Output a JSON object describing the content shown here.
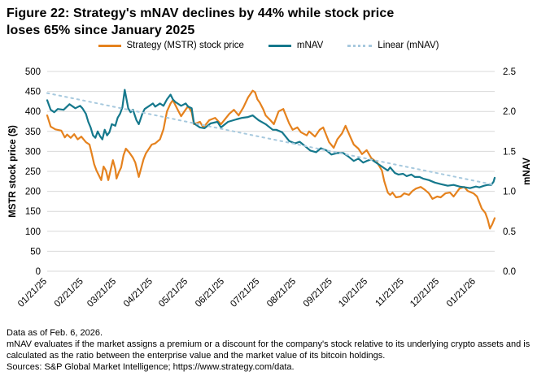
{
  "title": {
    "line1": "Figure 22: Strategy's mNAV declines by 44% while stock price",
    "line2": "loses 65% since January 2025"
  },
  "legend": [
    {
      "label": "Strategy (MSTR) stock price",
      "color": "#E5821E",
      "style": "solid"
    },
    {
      "label": "mNAV",
      "color": "#15788C",
      "style": "solid"
    },
    {
      "label": "Linear (mNAV)",
      "color": "#A7C9DE",
      "style": "dotted"
    }
  ],
  "colors": {
    "mstr_orange": "#E5821E",
    "mnav_teal": "#15788C",
    "trend_lightblue": "#A7C9DE",
    "gridline": "#D9D9D9",
    "text": "#000000"
  },
  "axes": {
    "left_title": "MSTR stock price ($)",
    "right_title": "mNAV",
    "left_ticks": [
      500,
      450,
      400,
      350,
      300,
      250,
      200,
      150,
      100,
      50,
      0
    ],
    "right_ticks": [
      "2.5",
      "2.0",
      "1.5",
      "1.0",
      "0.5",
      "0.0"
    ],
    "x_tick_labels": [
      "01/21/25",
      "02/21/25",
      "03/21/25",
      "04/21/25",
      "05/21/25",
      "06/21/25",
      "07/21/25",
      "08/21/25",
      "09/21/25",
      "10/21/25",
      "11/21/25",
      "12/21/25",
      "01/21/26"
    ]
  },
  "footnotes": [
    "Data as of Feb. 6, 2026.",
    "mNAV evaluates if the market assigns a premium or a discount for the company's stock relative to its underlying crypto assets and is calculated as the ratio between the enterprise value and the market value of its bitcoin holdings.",
    "Sources: S&P Global Market Intelligence; https://www.strategy.com/data."
  ],
  "chart_data": {
    "type": "line",
    "title": "Figure 22: Strategy's mNAV declines by 44% while stock price loses 65% since January 2025",
    "x_unit": "days since 01/21/2025",
    "x_range": [
      0,
      381
    ],
    "grid": true,
    "legend_position": "top-center",
    "left_axis": {
      "label": "MSTR stock price ($)",
      "ylim": [
        0,
        500
      ],
      "tick_step": 50
    },
    "right_axis": {
      "label": "mNAV",
      "ylim": [
        0,
        2.5
      ],
      "tick_step": 0.5
    },
    "x_ticks": [
      {
        "day": 0,
        "label": "01/21/25"
      },
      {
        "day": 31,
        "label": "02/21/25"
      },
      {
        "day": 59,
        "label": "03/21/25"
      },
      {
        "day": 90,
        "label": "04/21/25"
      },
      {
        "day": 120,
        "label": "05/21/25"
      },
      {
        "day": 151,
        "label": "06/21/25"
      },
      {
        "day": 181,
        "label": "07/21/25"
      },
      {
        "day": 212,
        "label": "08/21/25"
      },
      {
        "day": 243,
        "label": "09/21/25"
      },
      {
        "day": 273,
        "label": "10/21/25"
      },
      {
        "day": 304,
        "label": "11/21/25"
      },
      {
        "day": 334,
        "label": "12/21/25"
      },
      {
        "day": 365,
        "label": "01/21/26"
      }
    ],
    "series": [
      {
        "name": "Strategy (MSTR) stock price",
        "axis": "left",
        "color": "#E5821E",
        "dash": false,
        "points": [
          [
            0,
            390
          ],
          [
            3,
            362
          ],
          [
            7,
            355
          ],
          [
            12,
            352
          ],
          [
            15,
            335
          ],
          [
            17,
            342
          ],
          [
            20,
            334
          ],
          [
            23,
            343
          ],
          [
            26,
            330
          ],
          [
            29,
            337
          ],
          [
            33,
            323
          ],
          [
            36,
            317
          ],
          [
            38,
            293
          ],
          [
            40,
            268
          ],
          [
            42,
            252
          ],
          [
            44,
            240
          ],
          [
            46,
            228
          ],
          [
            48,
            262
          ],
          [
            50,
            252
          ],
          [
            52,
            228
          ],
          [
            55,
            266
          ],
          [
            56,
            278
          ],
          [
            58,
            256
          ],
          [
            59,
            232
          ],
          [
            61,
            248
          ],
          [
            63,
            260
          ],
          [
            65,
            290
          ],
          [
            67,
            307
          ],
          [
            70,
            297
          ],
          [
            73,
            284
          ],
          [
            75,
            272
          ],
          [
            78,
            236
          ],
          [
            82,
            280
          ],
          [
            84,
            295
          ],
          [
            89,
            317
          ],
          [
            92,
            320
          ],
          [
            96,
            330
          ],
          [
            99,
            355
          ],
          [
            102,
            400
          ],
          [
            105,
            420
          ],
          [
            107,
            428
          ],
          [
            111,
            405
          ],
          [
            114,
            388
          ],
          [
            118,
            405
          ],
          [
            120,
            413
          ],
          [
            123,
            398
          ],
          [
            125,
            368
          ],
          [
            130,
            374
          ],
          [
            133,
            360
          ],
          [
            138,
            378
          ],
          [
            143,
            384
          ],
          [
            148,
            368
          ],
          [
            155,
            394
          ],
          [
            159,
            404
          ],
          [
            163,
            390
          ],
          [
            167,
            410
          ],
          [
            171,
            435
          ],
          [
            175,
            452
          ],
          [
            177,
            448
          ],
          [
            179,
            430
          ],
          [
            181,
            422
          ],
          [
            184,
            405
          ],
          [
            186,
            390
          ],
          [
            190,
            378
          ],
          [
            193,
            368
          ],
          [
            197,
            400
          ],
          [
            201,
            406
          ],
          [
            206,
            370
          ],
          [
            209,
            354
          ],
          [
            213,
            360
          ],
          [
            216,
            348
          ],
          [
            221,
            340
          ],
          [
            223,
            350
          ],
          [
            228,
            337
          ],
          [
            232,
            354
          ],
          [
            235,
            360
          ],
          [
            240,
            323
          ],
          [
            244,
            309
          ],
          [
            247,
            330
          ],
          [
            251,
            345
          ],
          [
            254,
            364
          ],
          [
            258,
            337
          ],
          [
            261,
            317
          ],
          [
            265,
            307
          ],
          [
            268,
            293
          ],
          [
            272,
            303
          ],
          [
            276,
            283
          ],
          [
            281,
            272
          ],
          [
            283,
            262
          ],
          [
            285,
            252
          ],
          [
            287,
            225
          ],
          [
            290,
            197
          ],
          [
            292,
            191
          ],
          [
            294,
            197
          ],
          [
            297,
            185
          ],
          [
            301,
            187
          ],
          [
            304,
            195
          ],
          [
            308,
            191
          ],
          [
            311,
            201
          ],
          [
            314,
            207
          ],
          [
            318,
            211
          ],
          [
            321,
            205
          ],
          [
            325,
            195
          ],
          [
            328,
            181
          ],
          [
            332,
            187
          ],
          [
            335,
            185
          ],
          [
            339,
            195
          ],
          [
            343,
            197
          ],
          [
            346,
            187
          ],
          [
            351,
            207
          ],
          [
            355,
            211
          ],
          [
            358,
            201
          ],
          [
            363,
            195
          ],
          [
            366,
            187
          ],
          [
            370,
            157
          ],
          [
            373,
            146
          ],
          [
            375,
            130
          ],
          [
            377,
            107
          ],
          [
            379,
            118
          ],
          [
            381,
            133
          ]
        ]
      },
      {
        "name": "mNAV",
        "axis": "right",
        "color": "#15788C",
        "dash": false,
        "points": [
          [
            0,
            2.14
          ],
          [
            3,
            2.02
          ],
          [
            6,
            1.99
          ],
          [
            9,
            2.03
          ],
          [
            14,
            2.02
          ],
          [
            19,
            2.09
          ],
          [
            24,
            2.04
          ],
          [
            28,
            2.07
          ],
          [
            30,
            2.04
          ],
          [
            33,
            1.97
          ],
          [
            35,
            1.87
          ],
          [
            37,
            1.8
          ],
          [
            39,
            1.7
          ],
          [
            41,
            1.67
          ],
          [
            43,
            1.75
          ],
          [
            45,
            1.69
          ],
          [
            47,
            1.65
          ],
          [
            49,
            1.77
          ],
          [
            51,
            1.7
          ],
          [
            53,
            1.74
          ],
          [
            55,
            1.84
          ],
          [
            58,
            1.82
          ],
          [
            60,
            1.92
          ],
          [
            62,
            1.97
          ],
          [
            64,
            2.05
          ],
          [
            66,
            2.27
          ],
          [
            69,
            2.04
          ],
          [
            71,
            1.99
          ],
          [
            73,
            2.02
          ],
          [
            76,
            1.89
          ],
          [
            78,
            1.84
          ],
          [
            81,
            1.97
          ],
          [
            83,
            2.03
          ],
          [
            87,
            2.07
          ],
          [
            90,
            2.1
          ],
          [
            92,
            2.06
          ],
          [
            96,
            2.1
          ],
          [
            99,
            2.07
          ],
          [
            102,
            2.15
          ],
          [
            105,
            2.21
          ],
          [
            107,
            2.15
          ],
          [
            109,
            2.12
          ],
          [
            114,
            2.07
          ],
          [
            118,
            2.1
          ],
          [
            120,
            2.06
          ],
          [
            123,
            2.04
          ],
          [
            125,
            1.85
          ],
          [
            130,
            1.8
          ],
          [
            134,
            1.79
          ],
          [
            139,
            1.85
          ],
          [
            145,
            1.87
          ],
          [
            148,
            1.8
          ],
          [
            154,
            1.87
          ],
          [
            161,
            1.9
          ],
          [
            166,
            1.92
          ],
          [
            171,
            1.93
          ],
          [
            175,
            1.95
          ],
          [
            180,
            1.89
          ],
          [
            186,
            1.84
          ],
          [
            192,
            1.77
          ],
          [
            195,
            1.77
          ],
          [
            200,
            1.74
          ],
          [
            206,
            1.63
          ],
          [
            211,
            1.6
          ],
          [
            215,
            1.62
          ],
          [
            220,
            1.56
          ],
          [
            224,
            1.51
          ],
          [
            229,
            1.49
          ],
          [
            233,
            1.54
          ],
          [
            238,
            1.51
          ],
          [
            242,
            1.46
          ],
          [
            247,
            1.48
          ],
          [
            252,
            1.48
          ],
          [
            256,
            1.44
          ],
          [
            261,
            1.38
          ],
          [
            265,
            1.41
          ],
          [
            269,
            1.36
          ],
          [
            272,
            1.38
          ],
          [
            276,
            1.4
          ],
          [
            280,
            1.36
          ],
          [
            283,
            1.33
          ],
          [
            287,
            1.29
          ],
          [
            290,
            1.26
          ],
          [
            292,
            1.3
          ],
          [
            296,
            1.23
          ],
          [
            299,
            1.21
          ],
          [
            303,
            1.22
          ],
          [
            306,
            1.19
          ],
          [
            310,
            1.21
          ],
          [
            313,
            1.18
          ],
          [
            317,
            1.18
          ],
          [
            320,
            1.16
          ],
          [
            325,
            1.14
          ],
          [
            330,
            1.11
          ],
          [
            335,
            1.09
          ],
          [
            341,
            1.07
          ],
          [
            346,
            1.08
          ],
          [
            351,
            1.06
          ],
          [
            356,
            1.05
          ],
          [
            360,
            1.04
          ],
          [
            365,
            1.06
          ],
          [
            368,
            1.05
          ],
          [
            372,
            1.07
          ],
          [
            375,
            1.08
          ],
          [
            378,
            1.08
          ],
          [
            380,
            1.12
          ],
          [
            381,
            1.17
          ]
        ]
      },
      {
        "name": "Linear (mNAV)",
        "axis": "right",
        "color": "#A7C9DE",
        "dash": true,
        "points": [
          [
            0,
            2.23
          ],
          [
            381,
            1.08
          ]
        ]
      }
    ]
  }
}
